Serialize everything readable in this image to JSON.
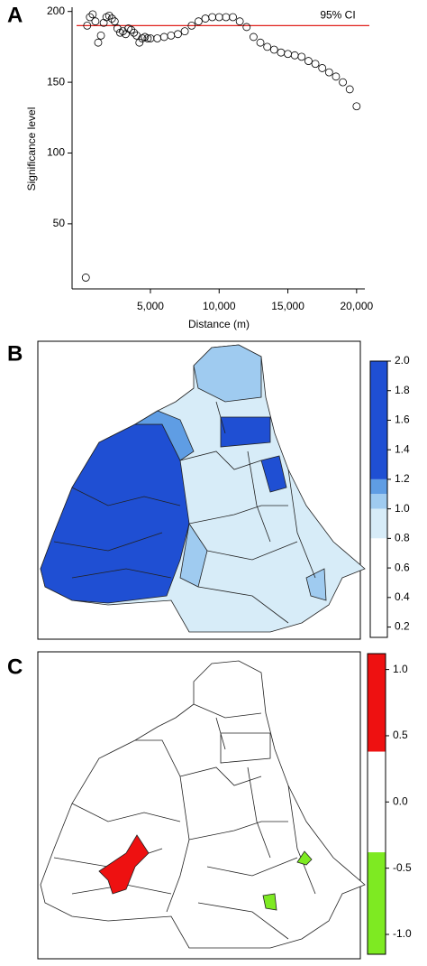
{
  "chart_data": [
    {
      "type": "scatter",
      "label": "A",
      "xlabel": "Distance (m)",
      "ylabel": "Significance level",
      "x": [
        300,
        400,
        600,
        800,
        1000,
        1200,
        1400,
        1600,
        1800,
        2000,
        2200,
        2400,
        2600,
        2800,
        3000,
        3200,
        3400,
        3600,
        3800,
        4000,
        4200,
        4400,
        4600,
        4800,
        5000,
        5500,
        6000,
        6500,
        7000,
        7500,
        8000,
        8500,
        9000,
        9500,
        10000,
        10500,
        11000,
        11500,
        12000,
        12500,
        13000,
        13500,
        14000,
        14500,
        15000,
        15500,
        16000,
        16500,
        17000,
        17500,
        18000,
        18500,
        19000,
        19500,
        20000
      ],
      "values": [
        12,
        190,
        196,
        198,
        193,
        178,
        183,
        192,
        196,
        197,
        195,
        193,
        188,
        185,
        186,
        184,
        188,
        187,
        185,
        183,
        178,
        181,
        182,
        181,
        181,
        181,
        182,
        183,
        184,
        186,
        190,
        193,
        195,
        196,
        196,
        196,
        196,
        193,
        189,
        182,
        178,
        175,
        173,
        171,
        170,
        169,
        168,
        165,
        163,
        160,
        157,
        154,
        150,
        145,
        133
      ],
      "xlim": [
        -700,
        20600
      ],
      "ylim": [
        4,
        203
      ],
      "xticks": [
        {
          "value": 5000,
          "label": "5,000"
        },
        {
          "value": 10000,
          "label": "10,000"
        },
        {
          "value": 15000,
          "label": "15,000"
        },
        {
          "value": 20000,
          "label": "20,000"
        }
      ],
      "yticks": [
        50,
        100,
        150,
        200
      ],
      "reference_line": {
        "value": 190,
        "label": "95% CI",
        "color": "#e0201b"
      }
    },
    {
      "type": "choropleth",
      "label": "B",
      "colorbar": {
        "lim": [
          0.13,
          2.0
        ],
        "ticks": [
          {
            "value": 2,
            "label": "2.0"
          },
          1.8,
          1.6,
          1.4,
          1.2,
          {
            "value": 1,
            "label": "1.0"
          },
          0.8,
          0.6,
          0.4,
          0.2
        ],
        "bands": [
          {
            "from": 1.2,
            "to": 2.0,
            "color": "#1f4fd3"
          },
          {
            "from": 1.1,
            "to": 1.2,
            "color": "#5f9de4"
          },
          {
            "from": 1.0,
            "to": 1.1,
            "color": "#9fcbf0"
          },
          {
            "from": 0.8,
            "to": 1.0,
            "color": "#d7ecf8"
          },
          {
            "from": 0.13,
            "to": 0.8,
            "color": "#ffffff"
          }
        ]
      }
    },
    {
      "type": "choropleth",
      "label": "C",
      "colorbar": {
        "lim": [
          -1.15,
          1.12
        ],
        "ticks": [
          {
            "value": 1,
            "label": "1.0"
          },
          0.5,
          {
            "value": 0,
            "label": "0.0"
          },
          -0.5,
          {
            "value": -1,
            "label": "-1.0"
          }
        ],
        "bands": [
          {
            "from": 0.38,
            "to": 1.12,
            "color": "#ee1111"
          },
          {
            "from": -0.38,
            "to": 0.38,
            "color": "#ffffff"
          },
          {
            "from": -1.15,
            "to": -0.38,
            "color": "#7eea22"
          }
        ]
      }
    }
  ]
}
